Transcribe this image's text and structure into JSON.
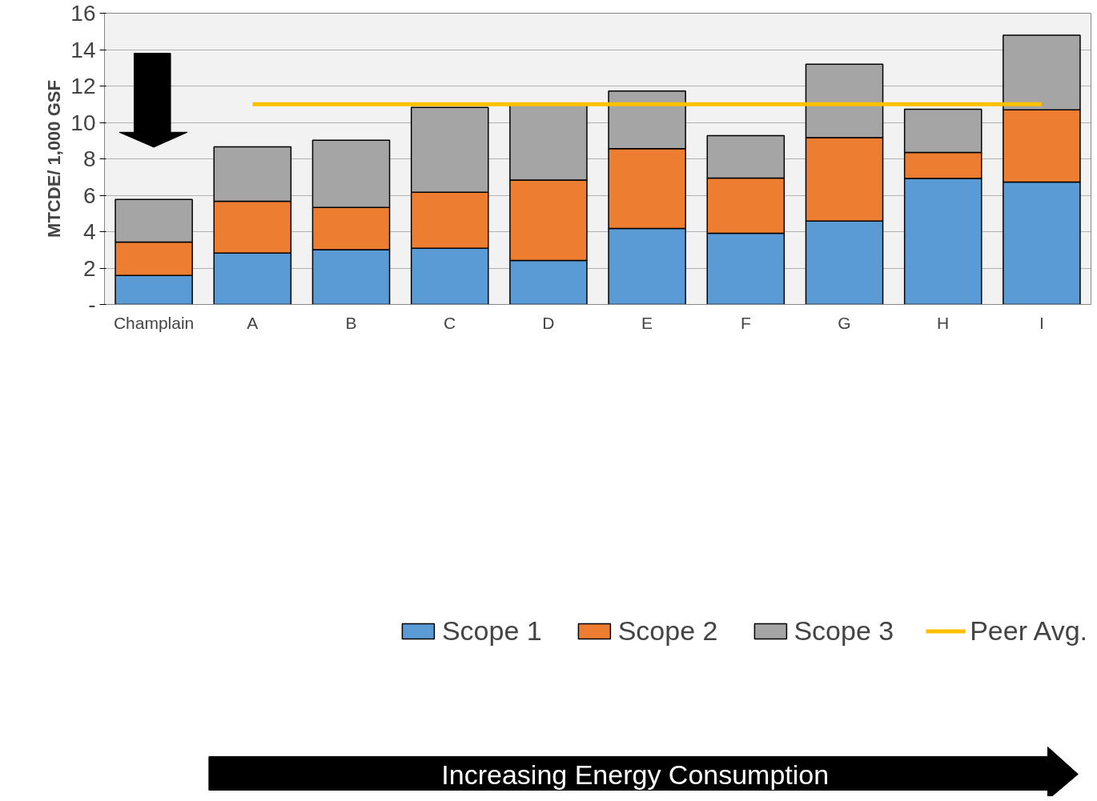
{
  "chart_data": {
    "type": "bar",
    "stacked": true,
    "ylabel": "MTCDE/ 1,000 GSF",
    "categories": [
      "Champlain",
      "A",
      "B",
      "C",
      "D",
      "E",
      "F",
      "G",
      "H",
      "I"
    ],
    "series": [
      {
        "name": "Scope 1",
        "color": "#5b9bd5",
        "values": [
          1.59,
          2.82,
          3.01,
          3.09,
          2.42,
          4.18,
          3.91,
          4.58,
          6.92,
          6.72
        ]
      },
      {
        "name": "Scope 2",
        "color": "#ed7d31",
        "values": [
          1.84,
          2.85,
          2.32,
          3.08,
          4.42,
          4.38,
          3.03,
          4.58,
          1.43,
          3.97
        ]
      },
      {
        "name": "Scope 3",
        "color": "#a5a5a5",
        "values": [
          2.34,
          2.99,
          3.69,
          4.65,
          4.18,
          3.16,
          2.34,
          4.04,
          2.38,
          4.1
        ]
      },
      {
        "name": "Peer Avg.",
        "type": "line",
        "color": "#ffc000",
        "values": [
          null,
          11,
          11,
          11,
          11,
          11,
          11,
          11,
          11,
          11
        ]
      }
    ],
    "ylim": [
      0,
      16
    ],
    "yticks": [
      {
        "value": 0,
        "label": "-"
      },
      2,
      4,
      6,
      8,
      10,
      12,
      14,
      16
    ],
    "grid": "y",
    "legend": "bottom",
    "annotations": [
      "Increasing Energy Consumption"
    ]
  }
}
